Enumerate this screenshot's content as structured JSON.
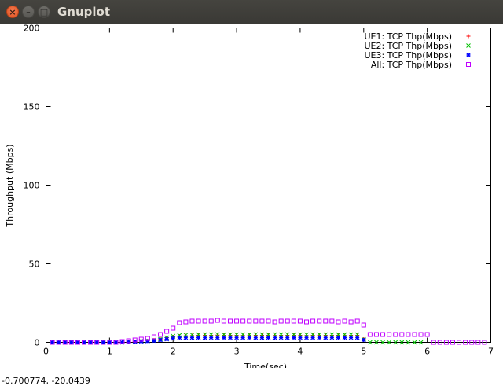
{
  "window": {
    "title": "Gnuplot"
  },
  "status_text": "-0.700774, -20.0439",
  "chart_data": {
    "type": "scatter",
    "title": "",
    "xlabel": "Time(sec)",
    "ylabel": "Throughput (Mbps)",
    "xlim": [
      0,
      7
    ],
    "ylim": [
      0,
      200
    ],
    "xticks": [
      0,
      1,
      2,
      3,
      4,
      5,
      6,
      7
    ],
    "yticks": [
      0,
      50,
      100,
      150,
      200
    ],
    "legend_position": "top-right",
    "series": [
      {
        "name": "UE1: TCP Thp(Mbps)",
        "color": "#ff0000",
        "marker": "plus",
        "x": [
          0.1,
          0.2,
          0.3,
          0.4,
          0.5,
          0.6,
          0.7,
          0.8,
          0.9,
          1.0,
          1.1,
          1.2,
          1.3,
          1.4,
          1.5,
          1.6,
          1.7,
          1.8,
          1.9,
          2.0,
          2.1,
          2.2,
          2.3,
          2.4,
          2.5,
          2.6,
          2.7,
          2.8,
          2.9,
          3.0,
          3.1,
          3.2,
          3.3,
          3.4,
          3.5,
          3.6,
          3.7,
          3.8,
          3.9,
          4.0,
          4.1,
          4.2,
          4.3,
          4.4,
          4.5,
          4.6,
          4.7,
          4.8,
          4.9,
          5.0
        ],
        "y": [
          0,
          0,
          0,
          0,
          0,
          0,
          0,
          0,
          0,
          0,
          0,
          0,
          0.3,
          0.5,
          0.8,
          1.0,
          1.5,
          2.0,
          3.0,
          3.5,
          4.0,
          4.2,
          4.3,
          4.5,
          4.5,
          4.5,
          4.6,
          4.5,
          4.5,
          4.5,
          4.4,
          4.5,
          4.5,
          4.5,
          4.5,
          4.4,
          4.5,
          4.5,
          4.5,
          4.5,
          4.4,
          4.5,
          4.5,
          4.5,
          4.5,
          4.5,
          4.4,
          4.5,
          4.5,
          2.0
        ]
      },
      {
        "name": "UE2: TCP Thp(Mbps)",
        "color": "#00c000",
        "marker": "cross",
        "x": [
          0.1,
          0.2,
          0.3,
          0.4,
          0.5,
          0.6,
          0.7,
          0.8,
          0.9,
          1.0,
          1.1,
          1.2,
          1.3,
          1.4,
          1.5,
          1.6,
          1.7,
          1.8,
          1.9,
          2.0,
          2.1,
          2.2,
          2.3,
          2.4,
          2.5,
          2.6,
          2.7,
          2.8,
          2.9,
          3.0,
          3.1,
          3.2,
          3.3,
          3.4,
          3.5,
          3.6,
          3.7,
          3.8,
          3.9,
          4.0,
          4.1,
          4.2,
          4.3,
          4.4,
          4.5,
          4.6,
          4.7,
          4.8,
          4.9,
          5.0,
          5.1,
          5.2,
          5.3,
          5.4,
          5.5,
          5.6,
          5.7,
          5.8,
          5.9
        ],
        "y": [
          0,
          0,
          0,
          0,
          0,
          0,
          0,
          0,
          0,
          0,
          0,
          0,
          0.3,
          0.5,
          0.8,
          1.0,
          1.5,
          2.0,
          3.0,
          4.0,
          4.5,
          4.7,
          4.8,
          5.0,
          5.0,
          5.0,
          5.1,
          5.0,
          5.0,
          5.0,
          5.0,
          5.0,
          5.1,
          5.0,
          5.0,
          5.0,
          5.0,
          5.1,
          5.0,
          5.0,
          5.0,
          5.0,
          5.1,
          5.0,
          5.0,
          5.0,
          5.0,
          5.0,
          5.0,
          2.0,
          0,
          0,
          0,
          0,
          0,
          0,
          0,
          0,
          0
        ]
      },
      {
        "name": "UE3: TCP Thp(Mbps)",
        "color": "#0000ff",
        "marker": "star",
        "x": [
          0.1,
          0.2,
          0.3,
          0.4,
          0.5,
          0.6,
          0.7,
          0.8,
          0.9,
          1.0,
          1.1,
          1.2,
          1.3,
          1.4,
          1.5,
          1.6,
          1.7,
          1.8,
          1.9,
          2.0,
          2.1,
          2.2,
          2.3,
          2.4,
          2.5,
          2.6,
          2.7,
          2.8,
          2.9,
          3.0,
          3.1,
          3.2,
          3.3,
          3.4,
          3.5,
          3.6,
          3.7,
          3.8,
          3.9,
          4.0,
          4.1,
          4.2,
          4.3,
          4.4,
          4.5,
          4.6,
          4.7,
          4.8,
          4.9,
          5.0
        ],
        "y": [
          0,
          0,
          0,
          0,
          0,
          0,
          0,
          0,
          0,
          0,
          0,
          0,
          0.2,
          0.4,
          0.6,
          0.8,
          1.0,
          1.5,
          2.0,
          2.5,
          3.0,
          3.0,
          3.0,
          3.0,
          3.0,
          3.0,
          3.0,
          3.0,
          3.0,
          3.0,
          3.0,
          3.0,
          3.0,
          3.0,
          3.0,
          3.0,
          3.0,
          3.0,
          3.0,
          3.0,
          3.0,
          3.0,
          3.0,
          3.0,
          3.0,
          3.0,
          3.0,
          3.0,
          3.0,
          1.5
        ]
      },
      {
        "name": "All: TCP Thp(Mbps)",
        "color": "#c000ff",
        "marker": "box",
        "x": [
          0.1,
          0.2,
          0.3,
          0.4,
          0.5,
          0.6,
          0.7,
          0.8,
          0.9,
          1.0,
          1.1,
          1.2,
          1.3,
          1.4,
          1.5,
          1.6,
          1.7,
          1.8,
          1.9,
          2.0,
          2.1,
          2.2,
          2.3,
          2.4,
          2.5,
          2.6,
          2.7,
          2.8,
          2.9,
          3.0,
          3.1,
          3.2,
          3.3,
          3.4,
          3.5,
          3.6,
          3.7,
          3.8,
          3.9,
          4.0,
          4.1,
          4.2,
          4.3,
          4.4,
          4.5,
          4.6,
          4.7,
          4.8,
          4.9,
          5.0,
          5.1,
          5.2,
          5.3,
          5.4,
          5.5,
          5.6,
          5.7,
          5.8,
          5.9,
          6.0,
          6.1,
          6.2,
          6.3,
          6.4,
          6.5,
          6.6,
          6.7,
          6.8,
          6.9
        ],
        "y": [
          0,
          0,
          0,
          0,
          0,
          0,
          0,
          0,
          0,
          0,
          0,
          0.5,
          1.0,
          1.5,
          2.0,
          2.5,
          3.5,
          5.0,
          7.0,
          9.0,
          12.5,
          13.0,
          13.5,
          13.5,
          13.5,
          13.5,
          14.0,
          13.5,
          13.5,
          13.5,
          13.5,
          13.5,
          13.5,
          13.5,
          13.5,
          13.0,
          13.5,
          13.5,
          13.5,
          13.5,
          13.0,
          13.5,
          13.5,
          13.5,
          13.5,
          13.0,
          13.5,
          13.0,
          13.5,
          11.0,
          5.0,
          5.0,
          5.0,
          5.0,
          5.0,
          5.0,
          5.0,
          5.0,
          5.0,
          5.0,
          0,
          0,
          0,
          0,
          0,
          0,
          0,
          0,
          0
        ]
      }
    ]
  }
}
